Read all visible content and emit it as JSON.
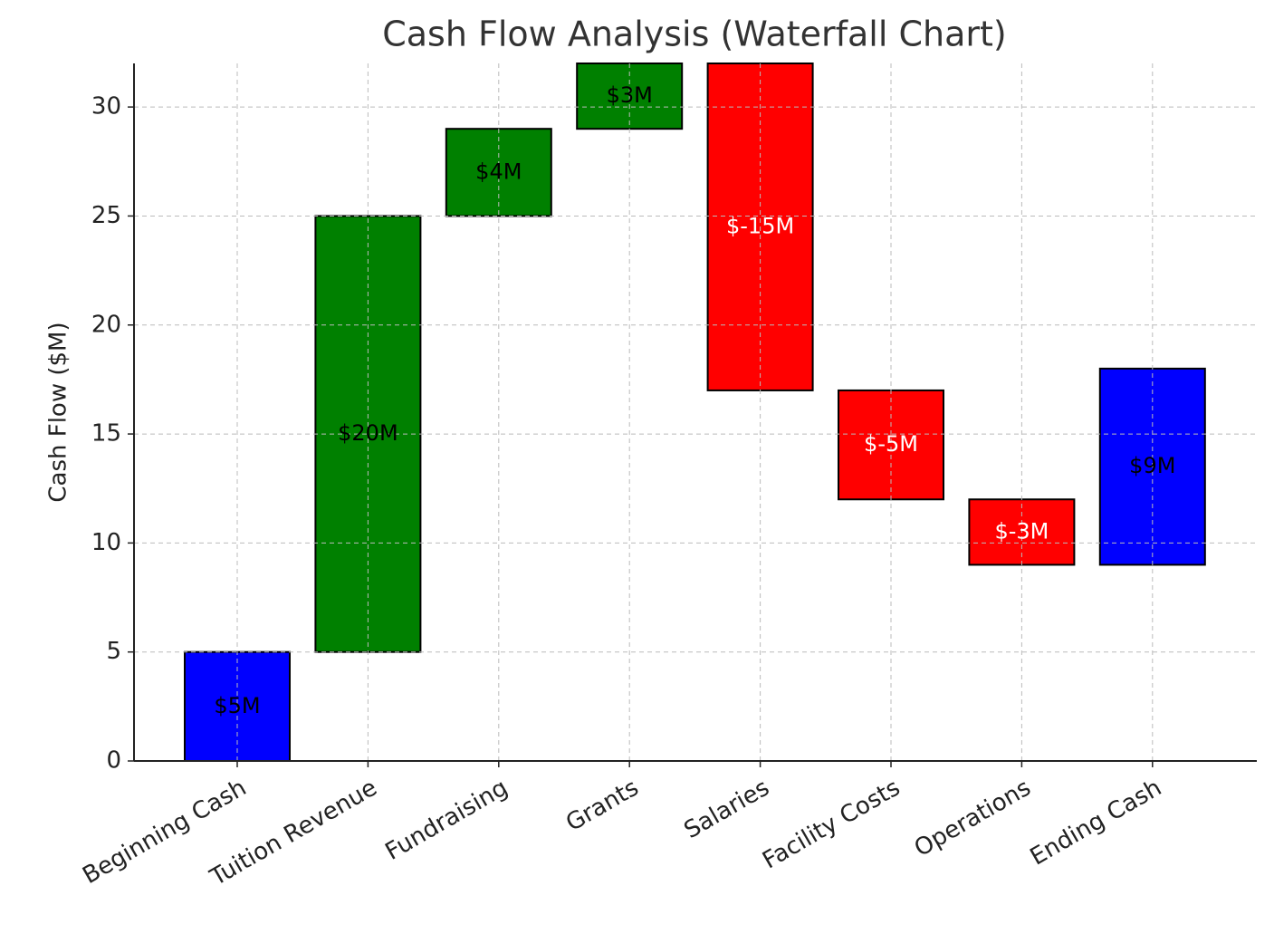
{
  "chart_data": {
    "type": "waterfall",
    "title": "Cash Flow Analysis (Waterfall Chart)",
    "ylabel": "Cash Flow ($M)",
    "categories": [
      "Beginning Cash",
      "Tuition Revenue",
      "Fundraising",
      "Grants",
      "Salaries",
      "Facility Costs",
      "Operations",
      "Ending Cash"
    ],
    "values": [
      5,
      20,
      4,
      3,
      -15,
      -5,
      -3,
      9
    ],
    "value_labels": [
      "$5M",
      "$20M",
      "$4M",
      "$3M",
      "$-15M",
      "$-5M",
      "$-3M",
      "$9M"
    ],
    "colors": [
      "#0000ff",
      "#008000",
      "#008000",
      "#008000",
      "#ff0000",
      "#ff0000",
      "#ff0000",
      "#0000ff"
    ],
    "label_colors": [
      "#000000",
      "#000000",
      "#000000",
      "#000000",
      "#ffffff",
      "#ffffff",
      "#ffffff",
      "#000000"
    ],
    "ylim": [
      0,
      32
    ],
    "yticks": [
      0,
      5,
      10,
      15,
      20,
      25,
      30
    ],
    "grid": true
  }
}
